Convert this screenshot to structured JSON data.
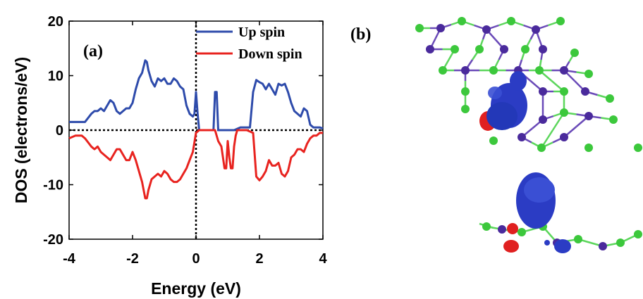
{
  "chart_data": {
    "type": "line",
    "panel_label": "(a)",
    "xlabel": "Energy (eV)",
    "ylabel": "DOS (electrons/eV)",
    "xlim": [
      -4,
      4
    ],
    "ylim": [
      -20,
      20
    ],
    "xticks": [
      "-4",
      "-2",
      "0",
      "2",
      "4"
    ],
    "yticks": [
      "20",
      "10",
      "0",
      "-10",
      "-20"
    ],
    "legend_position": "top-right",
    "reference_lines": {
      "x": 0,
      "y": 0,
      "style": "dotted"
    },
    "series": [
      {
        "name": "Up spin",
        "color": "#2e4bab",
        "x": [
          -4.0,
          -3.8,
          -3.6,
          -3.5,
          -3.3,
          -3.2,
          -3.1,
          -3.0,
          -2.9,
          -2.8,
          -2.7,
          -2.6,
          -2.5,
          -2.4,
          -2.3,
          -2.2,
          -2.1,
          -2.0,
          -1.9,
          -1.8,
          -1.7,
          -1.6,
          -1.55,
          -1.5,
          -1.4,
          -1.3,
          -1.2,
          -1.1,
          -1.0,
          -0.9,
          -0.8,
          -0.7,
          -0.6,
          -0.5,
          -0.4,
          -0.3,
          -0.2,
          -0.1,
          -0.05,
          0.0,
          0.05,
          0.1,
          0.2,
          0.4,
          0.55,
          0.6,
          0.65,
          0.7,
          0.8,
          1.0,
          1.2,
          1.4,
          1.6,
          1.7,
          1.8,
          1.9,
          2.0,
          2.1,
          2.2,
          2.3,
          2.4,
          2.5,
          2.6,
          2.7,
          2.8,
          2.9,
          3.0,
          3.1,
          3.2,
          3.3,
          3.4,
          3.5,
          3.6,
          3.7,
          3.8,
          3.9,
          4.0
        ],
        "values": [
          1.5,
          1.5,
          1.5,
          1.5,
          3.0,
          3.5,
          3.5,
          4.0,
          3.5,
          4.5,
          5.5,
          5.0,
          3.5,
          3.0,
          3.5,
          4.0,
          4.0,
          5.0,
          7.5,
          9.5,
          10.5,
          12.8,
          12.5,
          11.0,
          9.0,
          8.0,
          9.5,
          9.0,
          9.5,
          8.5,
          8.5,
          9.5,
          9.0,
          8.0,
          7.5,
          4.5,
          3.0,
          2.5,
          3.0,
          7.0,
          3.0,
          0.0,
          0.0,
          0.0,
          0.0,
          7.0,
          7.0,
          0.0,
          0.0,
          0.0,
          0.0,
          0.5,
          0.5,
          0.5,
          7.0,
          9.2,
          8.8,
          8.5,
          7.5,
          8.5,
          7.5,
          6.5,
          8.5,
          8.2,
          8.5,
          7.0,
          5.0,
          3.5,
          3.0,
          2.5,
          4.0,
          3.5,
          1.0,
          0.5,
          0.5,
          0.5,
          0.3
        ]
      },
      {
        "name": "Down spin",
        "color": "#e8231f",
        "x": [
          -4.0,
          -3.8,
          -3.6,
          -3.5,
          -3.3,
          -3.2,
          -3.1,
          -3.0,
          -2.9,
          -2.8,
          -2.7,
          -2.6,
          -2.5,
          -2.4,
          -2.3,
          -2.2,
          -2.1,
          -2.0,
          -1.9,
          -1.8,
          -1.7,
          -1.6,
          -1.55,
          -1.5,
          -1.4,
          -1.3,
          -1.2,
          -1.1,
          -1.0,
          -0.9,
          -0.8,
          -0.7,
          -0.6,
          -0.5,
          -0.4,
          -0.3,
          -0.2,
          -0.1,
          0.0,
          0.1,
          0.3,
          0.6,
          0.7,
          0.8,
          0.9,
          0.95,
          1.0,
          1.05,
          1.1,
          1.15,
          1.2,
          1.25,
          1.3,
          1.4,
          1.6,
          1.8,
          1.9,
          2.0,
          2.1,
          2.2,
          2.3,
          2.4,
          2.5,
          2.6,
          2.7,
          2.8,
          2.9,
          3.0,
          3.1,
          3.2,
          3.3,
          3.4,
          3.5,
          3.6,
          3.7,
          3.8,
          3.9,
          4.0
        ],
        "values": [
          -1.5,
          -1.0,
          -1.0,
          -1.5,
          -3.0,
          -3.5,
          -3.0,
          -4.0,
          -4.5,
          -5.0,
          -5.5,
          -4.5,
          -3.5,
          -3.5,
          -4.5,
          -5.5,
          -5.5,
          -4.0,
          -5.5,
          -7.5,
          -9.5,
          -12.5,
          -12.5,
          -11.0,
          -9.0,
          -8.5,
          -8.0,
          -8.5,
          -7.5,
          -8.0,
          -9.0,
          -9.5,
          -9.5,
          -9.0,
          -8.0,
          -7.0,
          -5.5,
          -4.0,
          -0.5,
          0.0,
          0.0,
          0.0,
          -2.0,
          -3.0,
          -7.0,
          -7.0,
          -2.0,
          -5.0,
          -7.0,
          -7.0,
          -3.0,
          -1.0,
          0.0,
          0.0,
          0.0,
          -0.5,
          -8.5,
          -9.2,
          -8.5,
          -7.5,
          -5.5,
          -6.5,
          -6.5,
          -6.0,
          -8.0,
          -8.5,
          -7.5,
          -5.0,
          -4.5,
          -3.5,
          -3.5,
          -4.0,
          -2.5,
          -1.5,
          -1.0,
          -1.0,
          -0.5,
          -0.5
        ]
      }
    ]
  },
  "panel_b": {
    "label": "(b)",
    "colors": {
      "blue_isosurface": "#2b3cc4",
      "red_isosurface": "#e02020",
      "green_atom": "#3cc83c",
      "purple_atom": "#4a2a9c",
      "bond_green": "#5cd65c",
      "bond_purple": "#6a4ab8"
    }
  }
}
